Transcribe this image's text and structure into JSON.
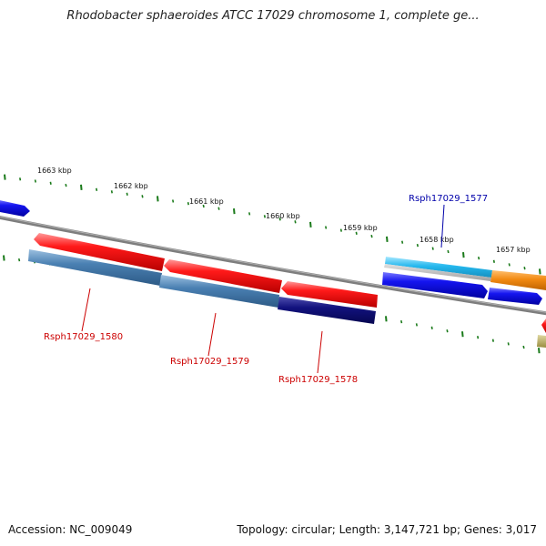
{
  "title": "Rhodobacter sphaeroides ATCC 17029 chromosome 1, complete ge...",
  "footer": {
    "accession": "Accession: NC_009049",
    "summary": "Topology: circular; Length: 3,147,721 bp; Genes: 3,017"
  },
  "ruler": {
    "labels": [
      "1663 kbp",
      "1662 kbp",
      "1661 kbp",
      "1660 kbp",
      "1659 kbp",
      "1658 kbp",
      "1657 kbp"
    ]
  },
  "genes": {
    "rsph_1577": "Rsph17029_1577",
    "rsph_1578": "Rsph17029_1578",
    "rsph_1579": "Rsph17029_1579",
    "rsph_1580": "Rsph17029_1580"
  },
  "colors": {
    "tick": "#1a7a1a",
    "backbone": "#808080",
    "red": "#ee1111",
    "blue": "#1010ee",
    "steel": "#4a7fb0",
    "navy": "#10107a",
    "cyan": "#22b8ee",
    "orange": "#f08810",
    "gray_bar": "#b8b8b8",
    "olive": "#b8aa60",
    "label_red": "#cc0000",
    "label_blue": "#0000aa"
  }
}
